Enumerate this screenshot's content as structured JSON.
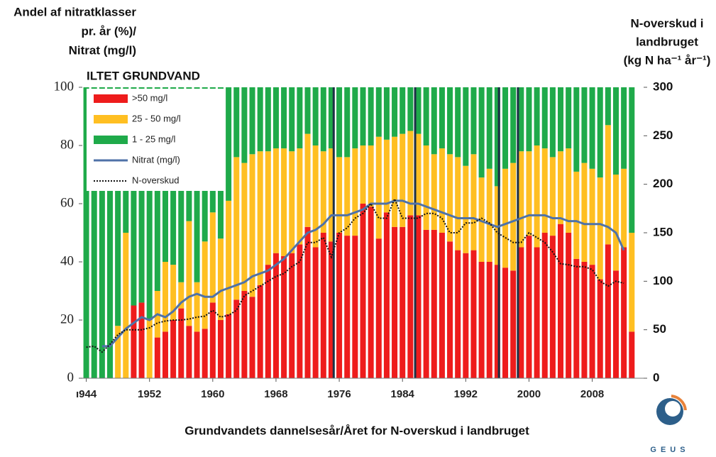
{
  "chart_data": {
    "type": "bar",
    "stacked": true,
    "title_left_axis": [
      "Andel af nitratklasser",
      "pr. år (%)/",
      "Nitrat (mg/l)"
    ],
    "title_right_axis": [
      "N-overskud i",
      "landbruget",
      "(kg N ha⁻¹ år⁻¹)"
    ],
    "annotation": "ILTET GRUNDVAND",
    "xlabel": "Grundvandets dannelsesår/Året for N-overskud i landbruget",
    "logo": "GEUS",
    "x": [
      1944,
      1945,
      1946,
      1947,
      1948,
      1949,
      1950,
      1951,
      1952,
      1953,
      1954,
      1955,
      1956,
      1957,
      1958,
      1959,
      1960,
      1961,
      1962,
      1963,
      1964,
      1965,
      1966,
      1967,
      1968,
      1969,
      1970,
      1971,
      1972,
      1973,
      1974,
      1975,
      1976,
      1977,
      1978,
      1979,
      1980,
      1981,
      1982,
      1983,
      1984,
      1985,
      1986,
      1987,
      1988,
      1989,
      1990,
      1991,
      1992,
      1993,
      1994,
      1995,
      1996,
      1997,
      1998,
      1999,
      2000,
      2001,
      2002,
      2003,
      2004,
      2005,
      2006,
      2007,
      2008,
      2009,
      2010,
      2011,
      2012,
      2013
    ],
    "series": [
      {
        "name": ">50 mg/l",
        "color": "#ee1c1c",
        "values": [
          0,
          0,
          0,
          0,
          0,
          0,
          25,
          26,
          0,
          14,
          16,
          20,
          24,
          18,
          16,
          17,
          26,
          20,
          22,
          27,
          30,
          28,
          32,
          39,
          43,
          42,
          43,
          46,
          52,
          45,
          50,
          47,
          50,
          49,
          49,
          60,
          59,
          48,
          57,
          52,
          52,
          56,
          56,
          51,
          51,
          50,
          47,
          44,
          43,
          44,
          40,
          40,
          39,
          38,
          37,
          45,
          49,
          45,
          50,
          49,
          53,
          50,
          41,
          40,
          39,
          34,
          46,
          37,
          45,
          16
        ]
      },
      {
        "name": "25 - 50 mg/l",
        "color": "#ffbf22",
        "values": [
          0,
          0,
          0,
          0,
          18,
          50,
          0,
          0,
          20,
          16,
          24,
          19,
          9,
          36,
          17,
          30,
          31,
          28,
          39,
          49,
          44,
          49,
          46,
          39,
          36,
          37,
          35,
          33,
          32,
          35,
          28,
          32,
          26,
          27,
          30,
          20,
          21,
          35,
          25,
          31,
          32,
          29,
          28,
          29,
          26,
          29,
          30,
          32,
          30,
          33,
          29,
          32,
          27,
          34,
          37,
          33,
          29,
          35,
          29,
          27,
          25,
          29,
          30,
          34,
          33,
          35,
          41,
          33,
          27,
          34
        ]
      },
      {
        "name": "1 - 25 mg/l",
        "color": "#1faa4a",
        "values": [
          100,
          100,
          100,
          100,
          82,
          50,
          75,
          74,
          80,
          70,
          60,
          61,
          67,
          46,
          67,
          53,
          43,
          52,
          39,
          24,
          26,
          23,
          22,
          22,
          21,
          21,
          22,
          21,
          16,
          20,
          22,
          21,
          24,
          24,
          21,
          20,
          20,
          17,
          18,
          17,
          16,
          15,
          16,
          20,
          23,
          21,
          23,
          24,
          27,
          23,
          31,
          28,
          34,
          28,
          26,
          22,
          22,
          20,
          21,
          24,
          22,
          21,
          29,
          26,
          28,
          31,
          13,
          30,
          28,
          50
        ]
      },
      {
        "name": "Nitrat (mg/l)",
        "type": "line",
        "color": "#4f72a8",
        "x": [
          1946,
          1947,
          1948,
          1949,
          1950,
          1951,
          1952,
          1953,
          1954,
          1955,
          1956,
          1957,
          1958,
          1959,
          1960,
          1961,
          1962,
          1963,
          1964,
          1965,
          1966,
          1967,
          1968,
          1969,
          1970,
          1971,
          1972,
          1973,
          1974,
          1975,
          1976,
          1977,
          1978,
          1979,
          1980,
          1981,
          1982,
          1983,
          1984,
          1985,
          1986,
          1987,
          1988,
          1989,
          1990,
          1991,
          1992,
          1993,
          1994,
          1995,
          1996,
          1997,
          1998,
          1999,
          2000,
          2001,
          2002,
          2003,
          2004,
          2005,
          2006,
          2007,
          2008,
          2009,
          2010,
          2011,
          2012
        ],
        "values": [
          11,
          11,
          14,
          17,
          19,
          21,
          20,
          22,
          21,
          23,
          26,
          28,
          29,
          28,
          28,
          30,
          31,
          32,
          33,
          35,
          36,
          37,
          39,
          41,
          44,
          47,
          50,
          51,
          53,
          56,
          56,
          56,
          57,
          58,
          60,
          60,
          60,
          61,
          61,
          60,
          60,
          59,
          58,
          57,
          56,
          55,
          55,
          55,
          54,
          53,
          52,
          53,
          54,
          55,
          56,
          56,
          56,
          55,
          55,
          54,
          54,
          53,
          53,
          53,
          52,
          50,
          44
        ]
      },
      {
        "name": "N-overskud",
        "type": "line",
        "axis": "y2",
        "linestyle": "dotted",
        "color": "#111111",
        "x": [
          1944,
          1945,
          1946,
          1947,
          1948,
          1949,
          1950,
          1951,
          1952,
          1953,
          1954,
          1955,
          1956,
          1957,
          1958,
          1959,
          1960,
          1961,
          1962,
          1963,
          1964,
          1965,
          1966,
          1967,
          1968,
          1969,
          1970,
          1971,
          1972,
          1973,
          1974,
          1975,
          1976,
          1977,
          1978,
          1979,
          1980,
          1981,
          1982,
          1983,
          1984,
          1985,
          1986,
          1987,
          1988,
          1989,
          1990,
          1991,
          1992,
          1993,
          1994,
          1995,
          1996,
          1997,
          1998,
          1999,
          2000,
          2001,
          2002,
          2003,
          2004,
          2005,
          2006,
          2007,
          2008,
          2009,
          2010,
          2011,
          2012
        ],
        "values": [
          32,
          33,
          27,
          35,
          45,
          50,
          50,
          50,
          52,
          57,
          59,
          60,
          60,
          61,
          63,
          64,
          70,
          63,
          65,
          70,
          85,
          90,
          95,
          100,
          105,
          108,
          115,
          120,
          140,
          140,
          145,
          125,
          150,
          155,
          165,
          170,
          180,
          165,
          165,
          185,
          165,
          165,
          165,
          170,
          170,
          165,
          150,
          150,
          160,
          160,
          165,
          160,
          150,
          145,
          140,
          140,
          150,
          145,
          140,
          130,
          118,
          117,
          115,
          115,
          112,
          100,
          95,
          100,
          98
        ]
      }
    ],
    "vlines": [
      1975.3,
      1985.6,
      1996.2,
      1998.6
    ],
    "xlim": [
      1943.5,
      2014.5
    ],
    "xticks": [
      {
        "value": 1944,
        "label": "ı944"
      },
      1952,
      1960,
      1968,
      1976,
      1984,
      1992,
      2000,
      2008
    ],
    "ylim": [
      0,
      100
    ],
    "yticks": [
      0,
      20,
      40,
      60,
      80,
      100
    ],
    "y2lim": [
      0,
      300
    ],
    "y2ticks": [
      0,
      50,
      100,
      150,
      200,
      250,
      300
    ],
    "legend": "top-left"
  }
}
